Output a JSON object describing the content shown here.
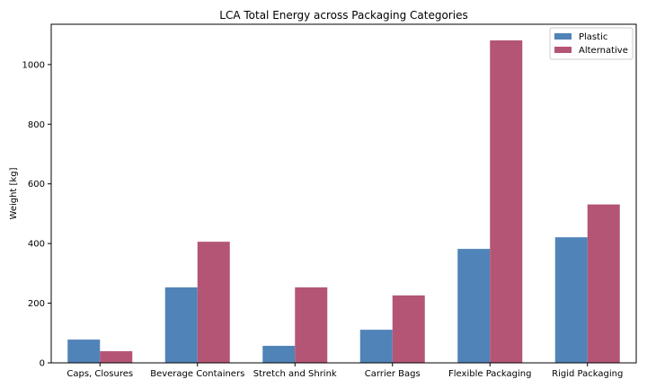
{
  "chart_data": {
    "type": "bar",
    "title": "LCA Total Energy across Packaging Categories",
    "xlabel": "",
    "ylabel": "Weight [kg]",
    "categories": [
      "Caps, Closures",
      "Beverage Containers",
      "Stretch and Shrink",
      "Carrier Bags",
      "Flexible Packaging",
      "Rigid Packaging"
    ],
    "series": [
      {
        "name": "Plastic",
        "color": "#5083b8",
        "values": [
          78,
          253,
          57,
          111,
          382,
          421
        ]
      },
      {
        "name": "Alternative",
        "color": "#b45575",
        "values": [
          39,
          406,
          253,
          226,
          1081,
          531
        ]
      }
    ],
    "ylim": [
      0,
      1135
    ],
    "yticks": [
      0,
      200,
      400,
      600,
      800,
      1000
    ],
    "legend_position": "top-right",
    "grid": false
  }
}
